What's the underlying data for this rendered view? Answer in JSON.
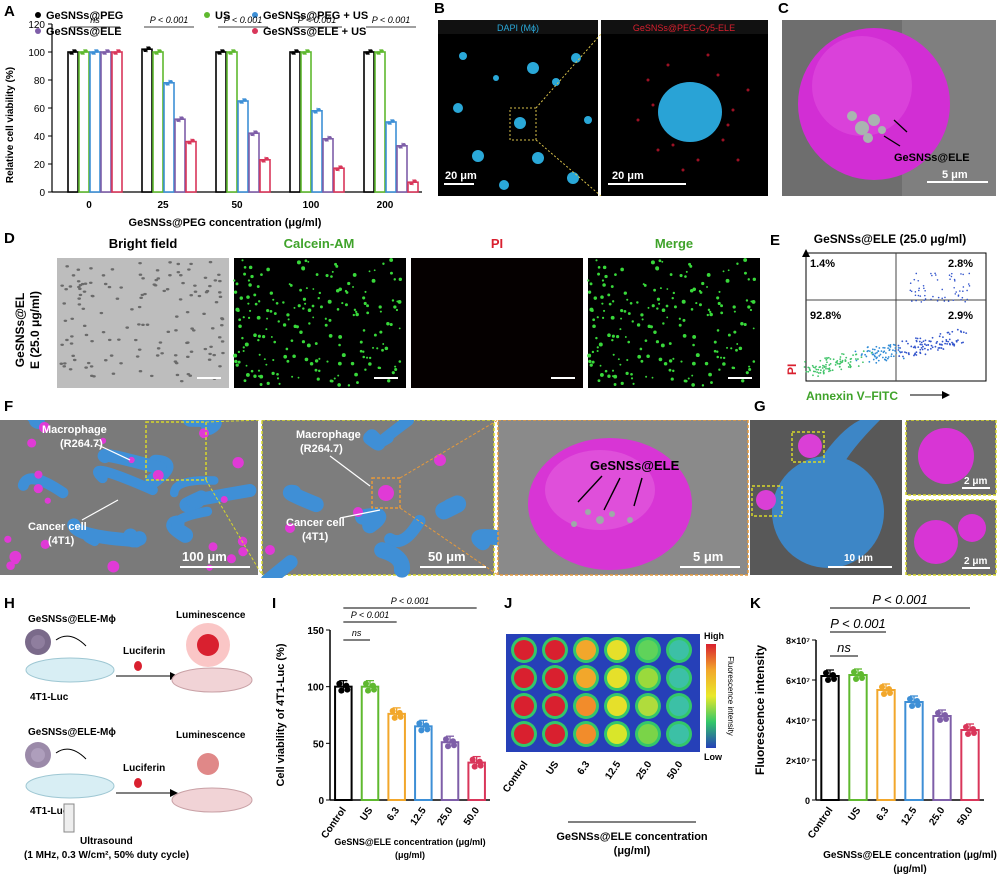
{
  "panels": {
    "A": "A",
    "B": "B",
    "C": "C",
    "D": "D",
    "E": "E",
    "F": "F",
    "G": "G",
    "H": "H",
    "I": "I",
    "J": "J",
    "K": "K"
  },
  "colors": {
    "black": "#000000",
    "green": "#5fb92f",
    "blue": "#3d8fd6",
    "purple": "#7e5ea8",
    "pink": "#d9365a",
    "orange": "#f2a72b",
    "cyan": "#27a9d4",
    "magenta": "#e23ad6",
    "sem_blue": "#3d88c8"
  },
  "chart_data": [
    {
      "panel": "A",
      "type": "bar",
      "title": "",
      "xlabel": "GeSNSs@PEG concentration (μg/ml)",
      "ylabel": "Relative cell viability (%)",
      "ylim": [
        0,
        120
      ],
      "yticks": [
        "0",
        "20",
        "40",
        "60",
        "80",
        "100",
        "120"
      ],
      "categories": [
        "0",
        "25",
        "50",
        "100",
        "200"
      ],
      "legend": [
        "GeSNSs@PEG",
        "US",
        "GeSNSs@PEG + US",
        "GeSNSs@ELE",
        "GeSNSs@ELE + US"
      ],
      "series": [
        {
          "name": "GeSNSs@PEG",
          "color": "#000000",
          "values": [
            100,
            102,
            100,
            100,
            100
          ]
        },
        {
          "name": "US",
          "color": "#5fb92f",
          "values": [
            100,
            100,
            100,
            100,
            100
          ]
        },
        {
          "name": "GeSNSs@PEG + US",
          "color": "#3d8fd6",
          "values": [
            100,
            78,
            65,
            58,
            50
          ]
        },
        {
          "name": "GeSNSs@ELE",
          "color": "#7e5ea8",
          "values": [
            100,
            52,
            42,
            38,
            33
          ]
        },
        {
          "name": "GeSNSs@ELE + US",
          "color": "#d9365a",
          "values": [
            100,
            36,
            23,
            17,
            7
          ]
        }
      ],
      "significance": [
        "ns",
        "P < 0.001",
        "P < 0.001",
        "P < 0.001",
        "P < 0.001"
      ]
    },
    {
      "panel": "I",
      "type": "bar",
      "title": "",
      "xlabel": "GeSNS@ELE concentration (μg/ml)",
      "ylabel": "Cell viability of 4T1-Luc (%)",
      "ylim": [
        0,
        150
      ],
      "yticks": [
        "0",
        "50",
        "100",
        "150"
      ],
      "categories": [
        "Control",
        "US",
        "6.3",
        "12.5",
        "25.0",
        "50.0"
      ],
      "values": [
        100,
        100,
        76,
        65,
        51,
        33
      ],
      "colors": [
        "#000000",
        "#5fb92f",
        "#f2a72b",
        "#3d8fd6",
        "#7e5ea8",
        "#d9365a"
      ],
      "significance": [
        {
          "label": "ns"
        },
        {
          "label": "P < 0.001"
        },
        {
          "label": "P < 0.001"
        }
      ]
    },
    {
      "panel": "K",
      "type": "bar",
      "title": "",
      "xlabel": "GeSNSs@ELE concentration (μg/ml)",
      "ylabel": "Fluorescence intensity",
      "ylim": [
        0,
        80000000
      ],
      "yticks": [
        "0",
        "2×10⁷",
        "4×10⁷",
        "6×10⁷",
        "8×10⁷"
      ],
      "categories": [
        "Control",
        "US",
        "6.3",
        "12.5",
        "25.0",
        "50.0"
      ],
      "values": [
        62000000,
        62500000,
        55000000,
        49000000,
        42000000,
        35000000
      ],
      "colors": [
        "#000000",
        "#5fb92f",
        "#f2a72b",
        "#3d8fd6",
        "#7e5ea8",
        "#d9365a"
      ],
      "significance": [
        {
          "label": "ns"
        },
        {
          "label": "P < 0.001"
        },
        {
          "label": "P < 0.001"
        }
      ]
    },
    {
      "panel": "E",
      "type": "scatter",
      "title": "GeSNSs@ELE (25.0 μg/ml)",
      "xlabel": "Annexin V–FITC",
      "ylabel": "PI",
      "quadrants": [
        "1.4%",
        "2.8%",
        "92.8%",
        "2.9%"
      ]
    }
  ],
  "panelB": {
    "left": "DAPI (Mϕ)",
    "right": "GeSNSs@PEG-Cy5-ELE",
    "scale1": "20 μm",
    "scale2": "20 μm"
  },
  "panelC": {
    "label": "GeSNSs@ELE",
    "scale": "5 μm"
  },
  "panelD": {
    "row_label_1": "GeSNSs@EL",
    "row_label_2": "E (25.0 μg/ml)",
    "headers": [
      "Bright field",
      "Calcein-AM",
      "PI",
      "Merge"
    ]
  },
  "panelF": {
    "macro": "Macrophage",
    "macro2": "(R264.7)",
    "cancer": "Cancer cell",
    "cancer2": "(4T1)",
    "scale1": "100 μm",
    "scale2": "50 μm",
    "scale3": "5 μm",
    "label3": "GeSNSs@ELE"
  },
  "panelG": {
    "scale1": "10 μm",
    "scale2": "2 μm",
    "scale3": "2 μm"
  },
  "panelH": {
    "title1": "GeSNSs@ELE-Mϕ",
    "title2": "GeSNSs@ELE-Mϕ",
    "lum": "Luminescence",
    "luc": "Luciferin",
    "cell": "4T1-Luc",
    "us": "Ultrasound",
    "param": "(1 MHz, 0.3 W/cm², 50% duty cycle)"
  },
  "panelJ": {
    "legend_title": "Fluorescence intensity",
    "high": "High",
    "low": "Low",
    "xlabel": "GeSNSs@ELE concentration",
    "unit": "(μg/ml)",
    "categories": [
      "Control",
      "US",
      "6.3",
      "12.5",
      "25.0",
      "50.0"
    ]
  }
}
